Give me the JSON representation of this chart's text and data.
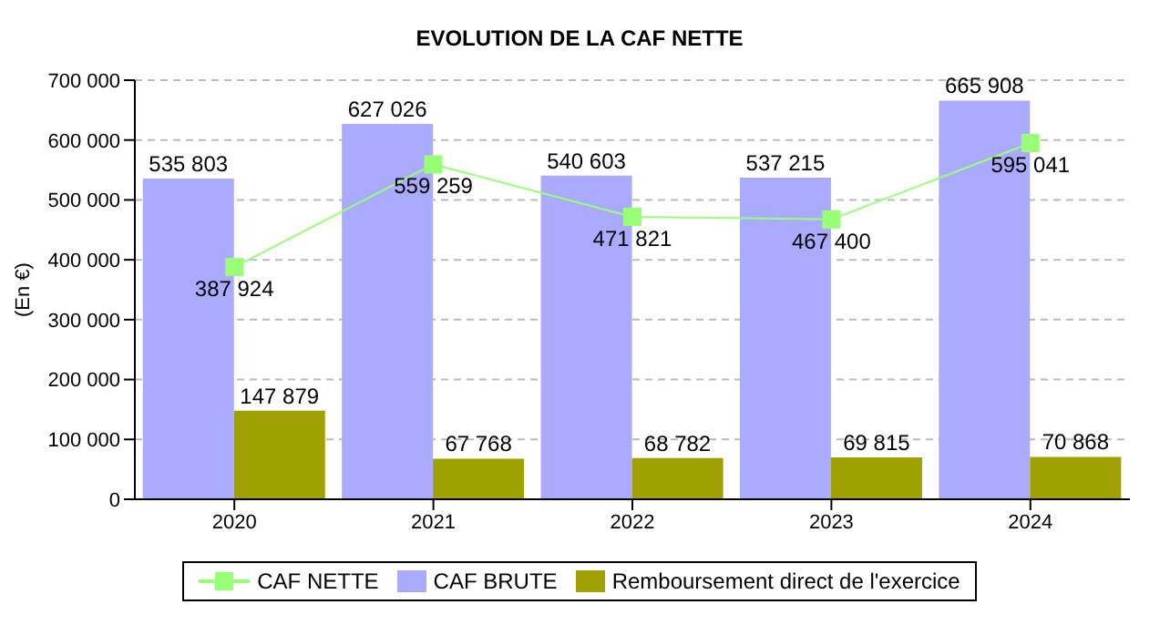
{
  "chart_data": {
    "type": "bar",
    "title": "EVOLUTION DE LA CAF NETTE",
    "ylabel": "(En €)",
    "categories": [
      "2020",
      "2021",
      "2022",
      "2023",
      "2024"
    ],
    "series": [
      {
        "name": "CAF NETTE",
        "type": "line",
        "color": "#99ff77",
        "marker": "square",
        "values": [
          387924,
          559259,
          471821,
          467400,
          595041
        ],
        "value_labels": [
          "387 924",
          "559 259",
          "471 821",
          "467 400",
          "595 041"
        ]
      },
      {
        "name": "CAF BRUTE",
        "color": "#aaaaff",
        "values": [
          535803,
          627026,
          540603,
          537215,
          665908
        ],
        "value_labels": [
          "535 803",
          "627 026",
          "540 603",
          "537 215",
          "665 908"
        ]
      },
      {
        "name": "Remboursement direct de l'exercice",
        "color": "#a0a000",
        "values": [
          147879,
          67768,
          68782,
          69815,
          70868
        ],
        "value_labels": [
          "147 879",
          "67 768",
          "68 782",
          "69 815",
          "70 868"
        ]
      }
    ],
    "ylim": [
      0,
      700000
    ],
    "yticks": [
      {
        "value": 0,
        "label": "0"
      },
      {
        "value": 100000,
        "label": "100 000"
      },
      {
        "value": 200000,
        "label": "200 000"
      },
      {
        "value": 300000,
        "label": "300 000"
      },
      {
        "value": 400000,
        "label": "400 000"
      },
      {
        "value": 500000,
        "label": "500 000"
      },
      {
        "value": 600000,
        "label": "600 000"
      },
      {
        "value": 700000,
        "label": "700 000"
      }
    ],
    "grid": "y",
    "legend": "bottom"
  }
}
